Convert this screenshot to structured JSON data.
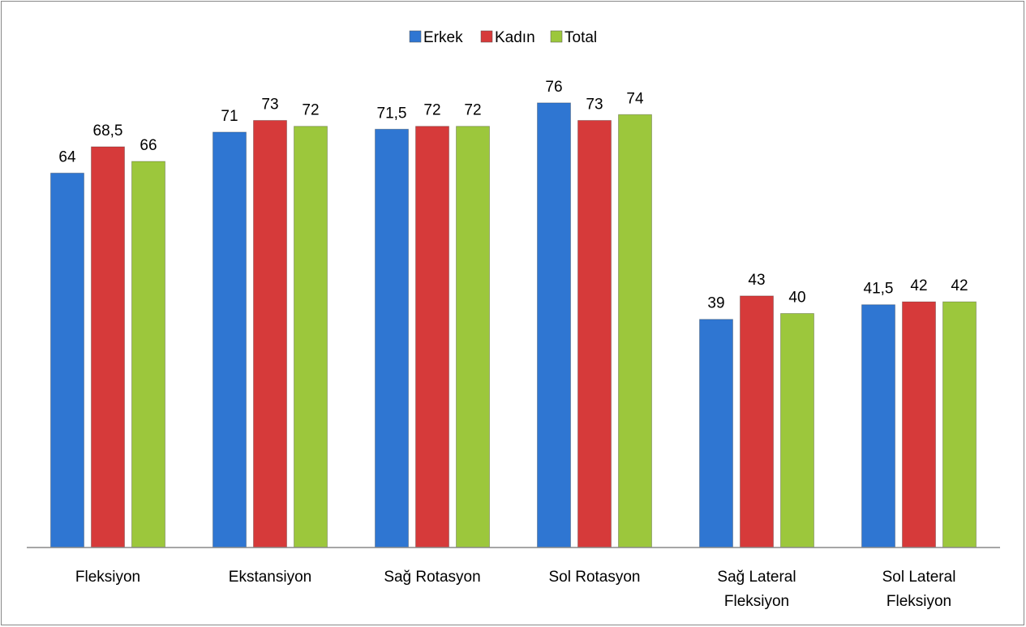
{
  "chart_data": {
    "type": "bar",
    "categories": [
      "Fleksiyon",
      "Ekstansiyon",
      "Sağ Rotasyon",
      "Sol Rotasyon",
      "Sağ Lateral Fleksiyon",
      "Sol Lateral Fleksiyon"
    ],
    "series": [
      {
        "name": "Erkek",
        "color": "#2f76d2",
        "values": [
          64,
          71,
          71.5,
          76,
          39,
          41.5
        ],
        "value_labels": [
          "64",
          "71",
          "71,5",
          "76",
          "39",
          "41,5"
        ]
      },
      {
        "name": "Kadın",
        "color": "#d63a3a",
        "values": [
          68.5,
          73,
          72,
          73,
          43,
          42
        ],
        "value_labels": [
          "68,5",
          "73",
          "72",
          "73",
          "43",
          "42"
        ]
      },
      {
        "name": "Total",
        "color": "#9cc73c",
        "values": [
          66,
          72,
          72,
          74,
          40,
          42
        ],
        "value_labels": [
          "66",
          "72",
          "72",
          "74",
          "40",
          "42"
        ]
      }
    ],
    "ylim": [
      0,
      80
    ],
    "legend": "top"
  }
}
